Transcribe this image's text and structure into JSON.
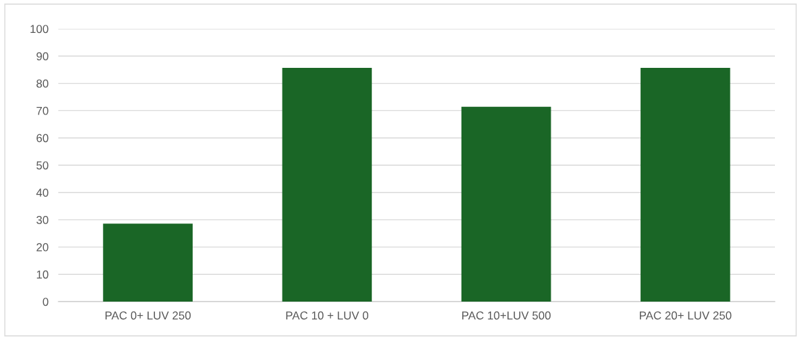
{
  "chart_data": {
    "type": "bar",
    "categories": [
      "PAC 0+ LUV 250",
      "PAC 10 + LUV 0",
      "PAC 10+LUV 500",
      "PAC 20+ LUV 250"
    ],
    "values": [
      28.6,
      85.7,
      71.4,
      85.7
    ],
    "color": "#1a6626",
    "ylim": [
      0,
      100
    ],
    "yticks": [
      0,
      10,
      20,
      30,
      40,
      50,
      60,
      70,
      80,
      90,
      100
    ],
    "grid": "y",
    "legend": false
  }
}
